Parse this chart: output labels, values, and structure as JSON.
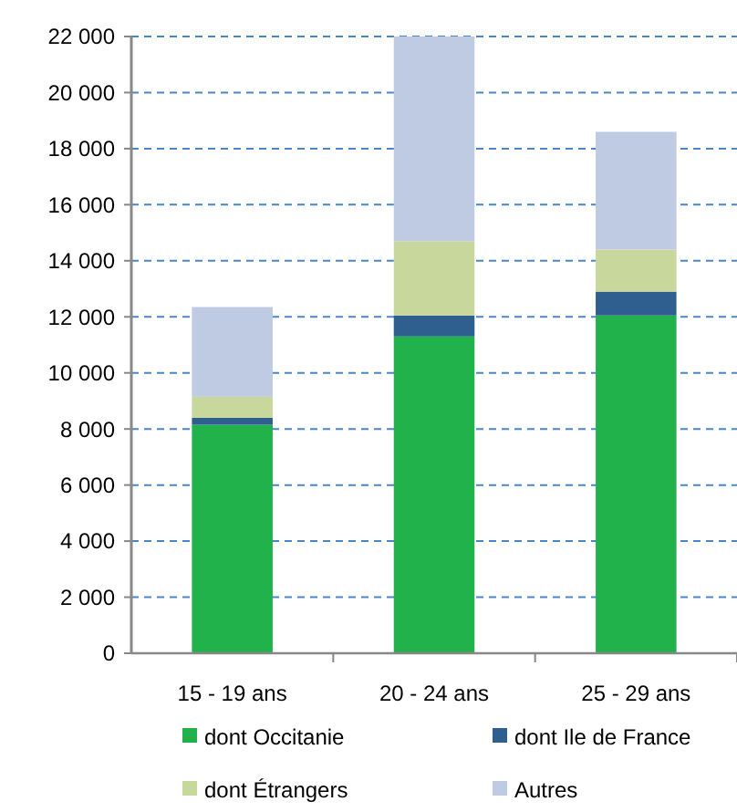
{
  "chart_data": {
    "type": "bar",
    "stacked": true,
    "categories": [
      "15 - 19 ans",
      "20 - 24 ans",
      "25 - 29 ans"
    ],
    "series": [
      {
        "name": "dont Occitanie",
        "color": "#22b24c",
        "values": [
          8150,
          11300,
          12050
        ]
      },
      {
        "name": "dont Ile de France",
        "color": "#2e5f8e",
        "values": [
          250,
          750,
          850
        ]
      },
      {
        "name": "dont Étrangers",
        "color": "#c8d89c",
        "values": [
          750,
          2650,
          1500
        ]
      },
      {
        "name": "Autres",
        "color": "#bfcae3",
        "values": [
          3200,
          7300,
          4200
        ]
      }
    ],
    "ylim": [
      0,
      22000
    ],
    "yticks": [
      {
        "value": 0,
        "label": "0"
      },
      {
        "value": 2000,
        "label": "2 000"
      },
      {
        "value": 4000,
        "label": "4 000"
      },
      {
        "value": 6000,
        "label": "6 000"
      },
      {
        "value": 8000,
        "label": "8 000"
      },
      {
        "value": 10000,
        "label": "10 000"
      },
      {
        "value": 12000,
        "label": "12 000"
      },
      {
        "value": 14000,
        "label": "14 000"
      },
      {
        "value": 16000,
        "label": "16 000"
      },
      {
        "value": 18000,
        "label": "18 000"
      },
      {
        "value": 20000,
        "label": "20 000"
      },
      {
        "value": 22000,
        "label": "22 000"
      }
    ],
    "grid": "y",
    "legend": "bottom"
  }
}
